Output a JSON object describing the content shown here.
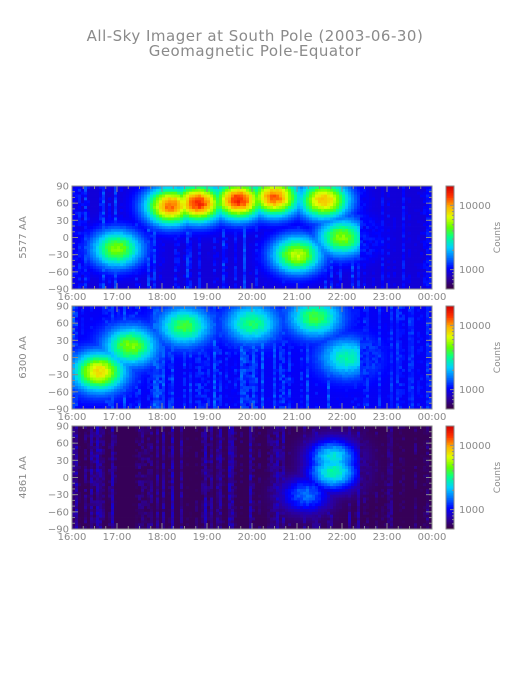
{
  "chart_data": {
    "type": "heatmap",
    "title": "All-Sky Imager at South Pole (2003-06-30)",
    "subtitle": "Geomagnetic Pole-Equator",
    "x_tick_labels": [
      "16:00",
      "17:00",
      "18:00",
      "19:00",
      "20:00",
      "21:00",
      "22:00",
      "23:00",
      "00:00"
    ],
    "y_tick_values": [
      90,
      60,
      30,
      0,
      -30,
      -60,
      -90
    ],
    "y_tick_labels": [
      "90",
      "60",
      "30",
      "0",
      "−30",
      "−60",
      "−90"
    ],
    "ylim": [
      -90,
      90
    ],
    "colorbar": {
      "label": "Counts",
      "scale": "log",
      "range": [
        500,
        20000
      ],
      "tick_values": [
        1000,
        10000
      ],
      "tick_labels": [
        "1000",
        "10000"
      ]
    },
    "colors": {
      "axis": "#8a8a8a",
      "title": "#8a8a8a",
      "palette": [
        "#3a003f",
        "#2b00a0",
        "#0000ff",
        "#0070ff",
        "#00d0ff",
        "#00ff90",
        "#60ff00",
        "#e0ff00",
        "#ffb000",
        "#ff3000",
        "#d00000"
      ]
    },
    "panels": [
      {
        "ylabel": "5577 AA",
        "description_level": "high",
        "background_count": 900,
        "events": [
          {
            "t": 18.8,
            "lat": 60,
            "count": 15000
          },
          {
            "t": 19.7,
            "lat": 65,
            "count": 15000
          },
          {
            "t": 18.2,
            "lat": 55,
            "count": 12000
          },
          {
            "t": 20.5,
            "lat": 70,
            "count": 12000
          },
          {
            "t": 21.6,
            "lat": 65,
            "count": 9000
          },
          {
            "t": 17.0,
            "lat": -20,
            "count": 5000
          },
          {
            "t": 21.0,
            "lat": -30,
            "count": 6000
          },
          {
            "t": 22.0,
            "lat": 0,
            "count": 5000
          }
        ]
      },
      {
        "ylabel": "6300 AA",
        "description_level": "medium",
        "background_count": 1000,
        "events": [
          {
            "t": 16.6,
            "lat": -25,
            "count": 8000
          },
          {
            "t": 17.3,
            "lat": 20,
            "count": 5000
          },
          {
            "t": 18.5,
            "lat": 55,
            "count": 4000
          },
          {
            "t": 20.0,
            "lat": 60,
            "count": 3500
          },
          {
            "t": 21.4,
            "lat": 70,
            "count": 4000
          },
          {
            "t": 22.1,
            "lat": 0,
            "count": 3000
          }
        ]
      },
      {
        "ylabel": "4861 AA",
        "description_level": "low",
        "background_count": 550,
        "events": [
          {
            "t": 21.8,
            "lat": 35,
            "count": 2500
          },
          {
            "t": 21.8,
            "lat": 10,
            "count": 3000
          },
          {
            "t": 21.2,
            "lat": -30,
            "count": 1500
          }
        ]
      }
    ]
  }
}
